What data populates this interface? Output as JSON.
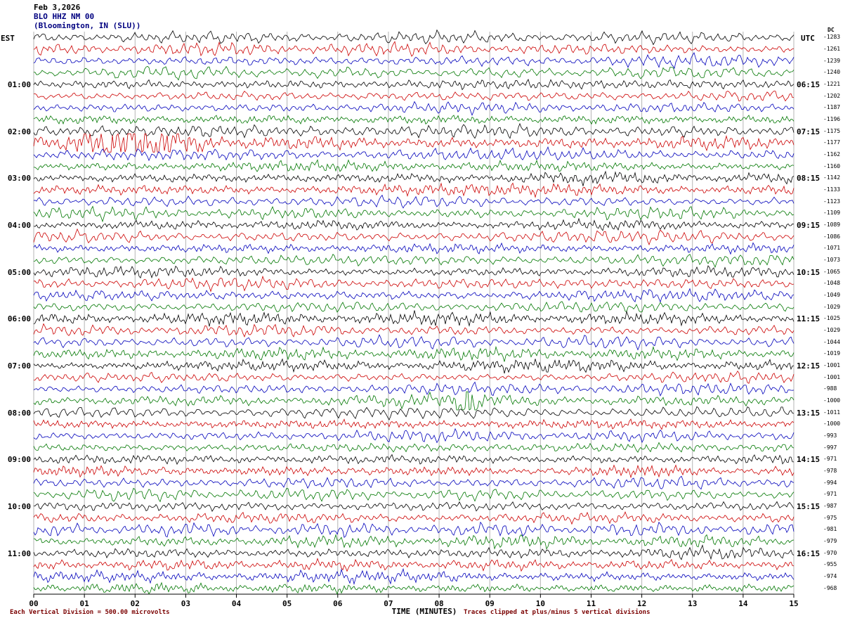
{
  "header": {
    "date": "Feb 3,2026",
    "station": "BLO HHZ NM 00",
    "location": "(Bloomington, IN (SLU))"
  },
  "axes": {
    "left_title": "EST",
    "right_title": "UTC",
    "dc_title": "DC",
    "x_label": "TIME (MINUTES)",
    "x_ticks": [
      "00",
      "01",
      "02",
      "03",
      "04",
      "05",
      "06",
      "07",
      "08",
      "09",
      "10",
      "11",
      "12",
      "13",
      "14",
      "15"
    ]
  },
  "footer": {
    "scale_note": "Each Vertical Division =  500.00 microvolts",
    "clip_note": "Traces clipped at plus/minus 5 vertical divisions"
  },
  "colors": {
    "black": "#000000",
    "red": "#cc0000",
    "blue": "#0000bb",
    "green": "#007700",
    "grid": "#b4b4b4",
    "header_accent": "#000080",
    "footer_text": "#7a0000"
  },
  "chart_data": {
    "type": "line",
    "subtype": "helicorder-seismogram",
    "station": "BLO HHZ NM 00",
    "description": "Continuous seismic background-noise traces, one 15-minute line per row",
    "minutes_per_line": 15,
    "x_range_minutes": [
      0,
      15
    ],
    "trace_color_cycle": [
      "black",
      "red",
      "blue",
      "green"
    ],
    "rows": [
      {
        "color": "black",
        "est": "",
        "utc": "",
        "dc": -1283
      },
      {
        "color": "red",
        "est": "",
        "utc": "",
        "dc": -1261
      },
      {
        "color": "blue",
        "est": "",
        "utc": "",
        "dc": -1239
      },
      {
        "color": "green",
        "est": "",
        "utc": "",
        "dc": -1240
      },
      {
        "color": "black",
        "est": "01:00",
        "utc": "06:15",
        "dc": -1221
      },
      {
        "color": "red",
        "est": "",
        "utc": "",
        "dc": -1202
      },
      {
        "color": "blue",
        "est": "",
        "utc": "",
        "dc": -1187
      },
      {
        "color": "green",
        "est": "",
        "utc": "",
        "dc": -1196
      },
      {
        "color": "black",
        "est": "02:00",
        "utc": "07:15",
        "dc": -1175,
        "amp": 1.2,
        "burst": [
          0.22,
          0.12,
          1.7
        ]
      },
      {
        "color": "red",
        "est": "",
        "utc": "",
        "dc": -1177,
        "amp": 1.3,
        "burst": [
          0.12,
          0.09,
          2.8
        ]
      },
      {
        "color": "blue",
        "est": "",
        "utc": "",
        "dc": -1162
      },
      {
        "color": "green",
        "est": "",
        "utc": "",
        "dc": -1160
      },
      {
        "color": "black",
        "est": "03:00",
        "utc": "08:15",
        "dc": -1142
      },
      {
        "color": "red",
        "est": "",
        "utc": "",
        "dc": -1133
      },
      {
        "color": "blue",
        "est": "",
        "utc": "",
        "dc": -1123
      },
      {
        "color": "green",
        "est": "",
        "utc": "",
        "dc": -1109
      },
      {
        "color": "black",
        "est": "04:00",
        "utc": "09:15",
        "dc": -1089
      },
      {
        "color": "red",
        "est": "",
        "utc": "",
        "dc": -1086
      },
      {
        "color": "blue",
        "est": "",
        "utc": "",
        "dc": -1071
      },
      {
        "color": "green",
        "est": "",
        "utc": "",
        "dc": -1073
      },
      {
        "color": "black",
        "est": "05:00",
        "utc": "10:15",
        "dc": -1065
      },
      {
        "color": "red",
        "est": "",
        "utc": "",
        "dc": -1048
      },
      {
        "color": "blue",
        "est": "",
        "utc": "",
        "dc": -1049
      },
      {
        "color": "green",
        "est": "",
        "utc": "",
        "dc": -1029
      },
      {
        "color": "black",
        "est": "06:00",
        "utc": "11:15",
        "dc": -1025
      },
      {
        "color": "red",
        "est": "",
        "utc": "",
        "dc": -1029
      },
      {
        "color": "blue",
        "est": "",
        "utc": "",
        "dc": -1044
      },
      {
        "color": "green",
        "est": "",
        "utc": "",
        "dc": -1019
      },
      {
        "color": "black",
        "est": "07:00",
        "utc": "12:15",
        "dc": -1001
      },
      {
        "color": "red",
        "est": "",
        "utc": "",
        "dc": -1001
      },
      {
        "color": "blue",
        "est": "",
        "utc": "",
        "dc": -988
      },
      {
        "color": "green",
        "est": "",
        "utc": "",
        "dc": -1000,
        "burst": [
          0.57,
          0.012,
          4
        ]
      },
      {
        "color": "black",
        "est": "08:00",
        "utc": "13:15",
        "dc": -1011
      },
      {
        "color": "red",
        "est": "",
        "utc": "",
        "dc": -1000
      },
      {
        "color": "blue",
        "est": "",
        "utc": "",
        "dc": -993
      },
      {
        "color": "green",
        "est": "",
        "utc": "",
        "dc": -997
      },
      {
        "color": "black",
        "est": "09:00",
        "utc": "14:15",
        "dc": -971
      },
      {
        "color": "red",
        "est": "",
        "utc": "",
        "dc": -978
      },
      {
        "color": "blue",
        "est": "",
        "utc": "",
        "dc": -994
      },
      {
        "color": "green",
        "est": "",
        "utc": "",
        "dc": -971
      },
      {
        "color": "black",
        "est": "10:00",
        "utc": "15:15",
        "dc": -987
      },
      {
        "color": "red",
        "est": "",
        "utc": "",
        "dc": -975
      },
      {
        "color": "blue",
        "est": "",
        "utc": "",
        "dc": -981
      },
      {
        "color": "green",
        "est": "",
        "utc": "",
        "dc": -979
      },
      {
        "color": "black",
        "est": "11:00",
        "utc": "16:15",
        "dc": -970
      },
      {
        "color": "red",
        "est": "",
        "utc": "",
        "dc": -955
      },
      {
        "color": "blue",
        "est": "",
        "utc": "",
        "dc": -974
      },
      {
        "color": "green",
        "est": "",
        "utc": "",
        "dc": -968
      }
    ]
  }
}
